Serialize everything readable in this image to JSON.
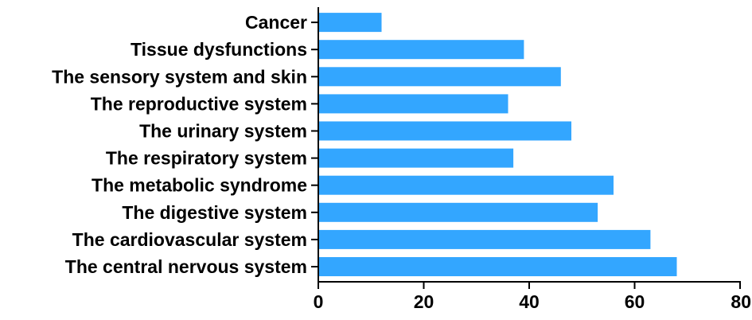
{
  "chart_data": {
    "type": "bar",
    "orientation": "horizontal",
    "categories": [
      "Cancer",
      "Tissue dysfunctions",
      "The sensory system and skin",
      "The reproductive system",
      "The urinary system",
      "The respiratory system",
      "The metabolic syndrome",
      "The digestive system",
      "The cardiovascular system",
      "The central nervous system"
    ],
    "values": [
      12,
      39,
      46,
      36,
      48,
      37,
      56,
      53,
      63,
      68
    ],
    "xlim": [
      0,
      80
    ],
    "xticks": [
      "0",
      "20",
      "40",
      "60",
      "80"
    ],
    "title": "",
    "xlabel": "",
    "ylabel": "",
    "bar_color": "#33a6ff",
    "grid": false,
    "legend": "none"
  }
}
